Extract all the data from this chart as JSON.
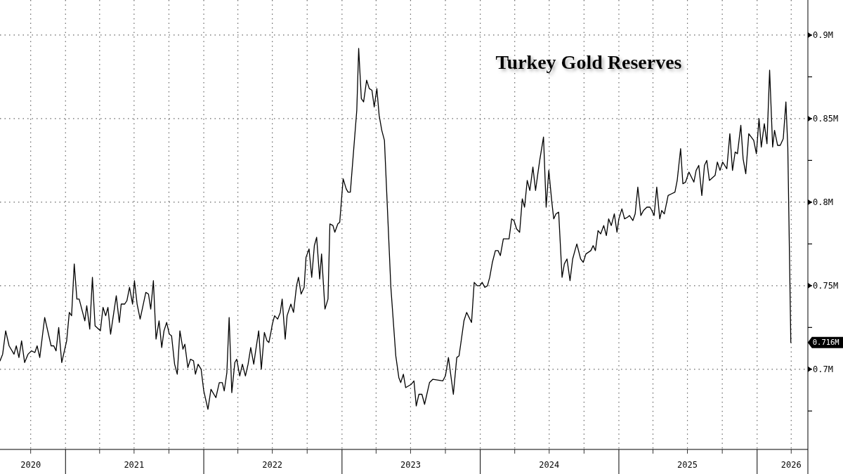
{
  "chart_data": {
    "type": "line",
    "title": "Turkey Gold Reserves",
    "xlim": [
      "2020-07-12",
      "2026-05-15"
    ],
    "ylim": [
      0.652,
      0.921
    ],
    "xticks": [
      {
        "value": "2020-10-01",
        "label": "2020"
      },
      {
        "value": "2021-01-01",
        "label": null
      },
      {
        "value": "2021-04-01",
        "label": null
      },
      {
        "value": "2021-07-01",
        "label": "2021"
      },
      {
        "value": "2021-10-01",
        "label": null
      },
      {
        "value": "2022-01-01",
        "label": null
      },
      {
        "value": "2022-04-01",
        "label": null
      },
      {
        "value": "2022-07-01",
        "label": "2022"
      },
      {
        "value": "2022-10-01",
        "label": null
      },
      {
        "value": "2023-01-01",
        "label": null
      },
      {
        "value": "2023-04-01",
        "label": null
      },
      {
        "value": "2023-07-01",
        "label": "2023"
      },
      {
        "value": "2023-10-01",
        "label": null
      },
      {
        "value": "2024-01-01",
        "label": null
      },
      {
        "value": "2024-04-01",
        "label": null
      },
      {
        "value": "2024-07-01",
        "label": "2024"
      },
      {
        "value": "2024-10-01",
        "label": null
      },
      {
        "value": "2025-01-01",
        "label": null
      },
      {
        "value": "2025-04-01",
        "label": null
      },
      {
        "value": "2025-07-01",
        "label": "2025"
      },
      {
        "value": "2025-10-01",
        "label": null
      },
      {
        "value": "2026-01-01",
        "label": null
      },
      {
        "value": "2026-04-01",
        "label": "2026"
      }
    ],
    "yticks": [
      {
        "value": 0.675,
        "label": null
      },
      {
        "value": 0.7,
        "label": "0.7M"
      },
      {
        "value": 0.725,
        "label": null
      },
      {
        "value": 0.75,
        "label": "0.75M"
      },
      {
        "value": 0.775,
        "label": null
      },
      {
        "value": 0.8,
        "label": "0.8M"
      },
      {
        "value": 0.825,
        "label": null
      },
      {
        "value": 0.85,
        "label": "0.85M"
      },
      {
        "value": 0.875,
        "label": null
      },
      {
        "value": 0.9,
        "label": "0.9M"
      }
    ],
    "grid": true,
    "line_style": "solid",
    "marker": "none",
    "annotations": [
      {
        "text": "0.716M",
        "x": "2026-03-31",
        "y": 0.716
      }
    ],
    "series": [
      {
        "color": "#000000",
        "x": [
          "2020-07-12",
          "2020-07-19",
          "2020-07-27",
          "2020-08-05",
          "2020-08-18",
          "2020-08-24",
          "2020-08-31",
          "2020-09-07",
          "2020-09-15",
          "2020-09-24",
          "2020-10-03",
          "2020-10-12",
          "2020-10-18",
          "2020-10-25",
          "2020-11-07",
          "2020-11-24",
          "2020-12-01",
          "2020-12-07",
          "2020-12-14",
          "2020-12-22",
          "2021-01-04",
          "2021-01-11",
          "2021-01-17",
          "2021-01-24",
          "2021-01-31",
          "2021-02-06",
          "2021-02-21",
          "2021-02-26",
          "2021-03-06",
          "2021-03-13",
          "2021-03-20",
          "2021-04-03",
          "2021-04-10",
          "2021-04-17",
          "2021-04-23",
          "2021-04-30",
          "2021-05-15",
          "2021-05-23",
          "2021-05-28",
          "2021-06-06",
          "2021-06-12",
          "2021-06-19",
          "2021-06-27",
          "2021-07-02",
          "2021-07-09",
          "2021-07-17",
          "2021-08-01",
          "2021-08-08",
          "2021-08-14",
          "2021-08-21",
          "2021-08-28",
          "2021-09-05",
          "2021-09-12",
          "2021-09-18",
          "2021-09-25",
          "2021-10-02",
          "2021-10-08",
          "2021-10-16",
          "2021-10-23",
          "2021-10-30",
          "2021-11-07",
          "2021-11-12",
          "2021-11-20",
          "2021-11-27",
          "2021-12-05",
          "2021-12-10",
          "2021-12-17",
          "2021-12-25",
          "2022-01-01",
          "2022-01-12",
          "2022-01-20",
          "2022-02-02",
          "2022-02-11",
          "2022-02-19",
          "2022-02-24",
          "2022-03-03",
          "2022-03-09",
          "2022-03-16",
          "2022-03-24",
          "2022-03-29",
          "2022-04-06",
          "2022-04-13",
          "2022-04-21",
          "2022-04-28",
          "2022-05-05",
          "2022-05-13",
          "2022-05-18",
          "2022-05-26",
          "2022-06-02",
          "2022-06-10",
          "2022-06-17",
          "2022-06-22",
          "2022-06-28",
          "2022-07-01",
          "2022-07-07",
          "2022-07-15",
          "2022-07-22",
          "2022-07-27",
          "2022-08-04",
          "2022-08-09",
          "2022-08-19",
          "2022-08-26",
          "2022-09-03",
          "2022-09-08",
          "2022-09-15",
          "2022-09-23",
          "2022-09-28",
          "2022-10-06",
          "2022-10-13",
          "2022-10-20",
          "2022-10-26",
          "2022-11-03",
          "2022-11-08",
          "2022-11-17",
          "2022-11-25",
          "2022-11-30",
          "2022-12-08",
          "2022-12-13",
          "2022-12-21",
          "2022-12-26",
          "2023-01-04",
          "2023-01-12",
          "2023-01-17",
          "2023-01-23",
          "2023-02-09",
          "2023-02-14",
          "2023-02-21",
          "2023-02-27",
          "2023-03-07",
          "2023-03-14",
          "2023-03-21",
          "2023-03-27",
          "2023-04-03",
          "2023-04-09",
          "2023-04-16",
          "2023-04-23",
          "2023-05-10",
          "2023-05-23",
          "2023-05-31",
          "2023-06-05",
          "2023-06-12",
          "2023-06-18",
          "2023-07-03",
          "2023-07-10",
          "2023-07-16",
          "2023-07-23",
          "2023-07-31",
          "2023-08-07",
          "2023-08-20",
          "2023-08-29",
          "2023-09-24",
          "2023-10-01",
          "2023-10-09",
          "2023-10-22",
          "2023-10-31",
          "2023-11-06",
          "2023-11-11",
          "2023-11-19",
          "2023-11-26",
          "2023-12-09",
          "2023-12-16",
          "2023-12-24",
          "2023-12-31",
          "2024-01-06",
          "2024-01-13",
          "2024-01-20",
          "2024-01-26",
          "2024-02-02",
          "2024-02-10",
          "2024-02-17",
          "2024-02-23",
          "2024-03-02",
          "2024-03-17",
          "2024-03-24",
          "2024-03-30",
          "2024-04-06",
          "2024-04-14",
          "2024-04-21",
          "2024-04-27",
          "2024-05-04",
          "2024-05-11",
          "2024-05-19",
          "2024-05-26",
          "2024-06-01",
          "2024-06-06",
          "2024-06-16",
          "2024-06-23",
          "2024-06-30",
          "2024-07-08",
          "2024-07-13",
          "2024-07-19",
          "2024-07-26",
          "2024-08-04",
          "2024-08-10",
          "2024-08-17",
          "2024-08-25",
          "2024-09-01",
          "2024-09-07",
          "2024-09-12",
          "2024-09-22",
          "2024-09-29",
          "2024-10-06",
          "2024-10-19",
          "2024-10-25",
          "2024-10-31",
          "2024-11-07",
          "2024-11-14",
          "2024-11-22",
          "2024-11-29",
          "2024-12-05",
          "2024-12-12",
          "2024-12-20",
          "2024-12-27",
          "2025-01-01",
          "2025-01-09",
          "2025-01-16",
          "2025-01-24",
          "2025-01-29",
          "2025-02-07",
          "2025-02-13",
          "2025-02-20",
          "2025-02-28",
          "2025-03-07",
          "2025-03-16",
          "2025-03-24",
          "2025-03-29",
          "2025-04-04",
          "2025-04-11",
          "2025-04-19",
          "2025-04-24",
          "2025-05-01",
          "2025-05-11",
          "2025-05-20",
          "2025-05-29",
          "2025-06-04",
          "2025-06-13",
          "2025-06-19",
          "2025-06-26",
          "2025-07-05",
          "2025-07-18",
          "2025-07-24",
          "2025-07-31",
          "2025-08-08",
          "2025-08-15",
          "2025-08-21",
          "2025-08-28",
          "2025-09-12",
          "2025-09-18",
          "2025-09-25",
          "2025-10-02",
          "2025-10-13",
          "2025-10-21",
          "2025-10-28",
          "2025-11-04",
          "2025-11-10",
          "2025-11-19",
          "2025-11-25",
          "2025-12-02",
          "2025-12-10",
          "2025-12-23",
          "2025-12-30",
          "2026-01-06",
          "2026-01-12",
          "2026-01-20",
          "2026-01-27",
          "2026-02-03",
          "2026-02-11",
          "2026-02-16",
          "2026-02-24",
          "2026-03-03",
          "2026-03-11",
          "2026-03-18",
          "2026-03-23",
          "2026-03-31"
        ],
        "values": [
          0.705,
          0.709,
          0.723,
          0.714,
          0.709,
          0.714,
          0.707,
          0.717,
          0.704,
          0.709,
          0.711,
          0.71,
          0.714,
          0.707,
          0.731,
          0.714,
          0.714,
          0.711,
          0.725,
          0.704,
          0.717,
          0.734,
          0.732,
          0.763,
          0.742,
          0.742,
          0.729,
          0.738,
          0.724,
          0.755,
          0.726,
          0.723,
          0.737,
          0.732,
          0.737,
          0.721,
          0.744,
          0.728,
          0.739,
          0.739,
          0.741,
          0.749,
          0.739,
          0.753,
          0.739,
          0.73,
          0.746,
          0.745,
          0.736,
          0.753,
          0.718,
          0.729,
          0.713,
          0.723,
          0.728,
          0.721,
          0.72,
          0.703,
          0.697,
          0.723,
          0.712,
          0.715,
          0.701,
          0.706,
          0.705,
          0.697,
          0.703,
          0.7,
          0.687,
          0.676,
          0.688,
          0.683,
          0.692,
          0.692,
          0.687,
          0.698,
          0.731,
          0.686,
          0.704,
          0.706,
          0.696,
          0.703,
          0.696,
          0.703,
          0.713,
          0.703,
          0.711,
          0.723,
          0.7,
          0.722,
          0.717,
          0.716,
          0.723,
          0.727,
          0.732,
          0.73,
          0.734,
          0.742,
          0.718,
          0.732,
          0.739,
          0.734,
          0.75,
          0.755,
          0.745,
          0.749,
          0.767,
          0.772,
          0.755,
          0.774,
          0.779,
          0.754,
          0.769,
          0.736,
          0.742,
          0.787,
          0.786,
          0.782,
          0.787,
          0.788,
          0.814,
          0.808,
          0.806,
          0.806,
          0.855,
          0.892,
          0.862,
          0.86,
          0.873,
          0.868,
          0.867,
          0.857,
          0.868,
          0.852,
          0.843,
          0.837,
          0.749,
          0.708,
          0.695,
          0.692,
          0.697,
          0.689,
          0.691,
          0.693,
          0.678,
          0.685,
          0.685,
          0.679,
          0.692,
          0.694,
          0.693,
          0.696,
          0.707,
          0.685,
          0.707,
          0.708,
          0.716,
          0.729,
          0.734,
          0.728,
          0.752,
          0.75,
          0.75,
          0.752,
          0.749,
          0.75,
          0.755,
          0.764,
          0.771,
          0.771,
          0.768,
          0.778,
          0.778,
          0.79,
          0.789,
          0.784,
          0.782,
          0.802,
          0.797,
          0.813,
          0.807,
          0.821,
          0.807,
          0.817,
          0.825,
          0.839,
          0.797,
          0.819,
          0.8,
          0.79,
          0.793,
          0.794,
          0.755,
          0.763,
          0.766,
          0.753,
          0.766,
          0.771,
          0.775,
          0.766,
          0.764,
          0.769,
          0.771,
          0.774,
          0.771,
          0.783,
          0.781,
          0.786,
          0.78,
          0.79,
          0.786,
          0.793,
          0.782,
          0.79,
          0.796,
          0.79,
          0.791,
          0.792,
          0.789,
          0.793,
          0.809,
          0.792,
          0.795,
          0.797,
          0.797,
          0.795,
          0.792,
          0.809,
          0.79,
          0.795,
          0.793,
          0.804,
          0.805,
          0.806,
          0.813,
          0.832,
          0.811,
          0.812,
          0.818,
          0.812,
          0.819,
          0.822,
          0.804,
          0.822,
          0.825,
          0.813,
          0.816,
          0.824,
          0.819,
          0.824,
          0.82,
          0.841,
          0.819,
          0.83,
          0.829,
          0.846,
          0.826,
          0.817,
          0.841,
          0.837,
          0.829,
          0.85,
          0.833,
          0.847,
          0.835,
          0.879,
          0.833,
          0.843,
          0.834,
          0.834,
          0.838,
          0.86,
          0.833,
          0.716
        ]
      }
    ]
  }
}
